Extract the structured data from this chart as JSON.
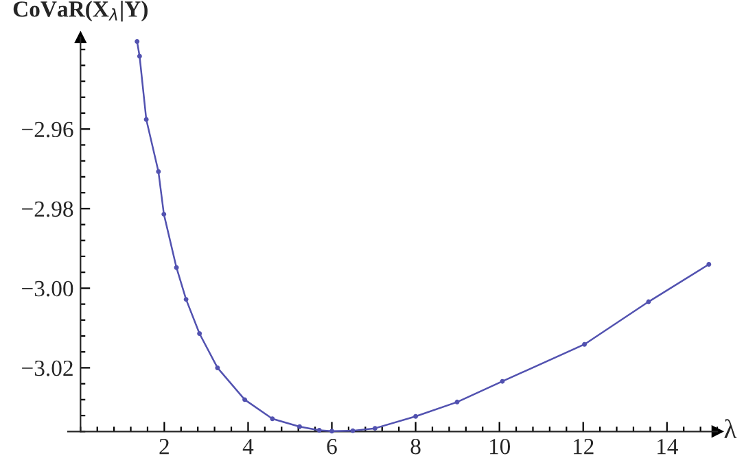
{
  "chart_data": {
    "type": "line",
    "xlabel": "λ",
    "ylabel": "CoVaR(X$_{λ}$|Y)",
    "x": [
      1.35,
      1.41,
      1.57,
      1.86,
      1.99,
      2.29,
      2.52,
      2.84,
      3.27,
      3.92,
      4.58,
      5.23,
      5.7,
      6.0,
      6.5,
      7.03,
      8.0,
      8.99,
      10.07,
      12.03,
      13.56,
      15.0
    ],
    "series": [
      {
        "color": "#5252b0",
        "values": [
          -2.938,
          -2.9417,
          -2.9576,
          -2.9707,
          -2.9814,
          -2.9948,
          -3.0028,
          -3.0114,
          -3.02,
          -3.028,
          -3.0328,
          -3.0348,
          -3.0357,
          -3.0359,
          -3.0358,
          -3.0352,
          -3.0322,
          -3.0286,
          -3.0234,
          -3.0141,
          -3.0034,
          -2.994
        ]
      }
    ],
    "xlim": [
      -0.3,
      15.2
    ],
    "ylim": [
      -3.036,
      -2.937
    ],
    "xticks": [
      2,
      4,
      6,
      8,
      10,
      12,
      14
    ],
    "yticks": [
      {
        "value": -2.96,
        "label": "−2.96"
      },
      {
        "value": -2.98,
        "label": "−2.98"
      },
      {
        "value": -3.0,
        "label": "−3.00"
      },
      {
        "value": -3.02,
        "label": "−3.02"
      }
    ],
    "marker": "circle",
    "line_style": "solid",
    "grid": false,
    "legend": false
  }
}
